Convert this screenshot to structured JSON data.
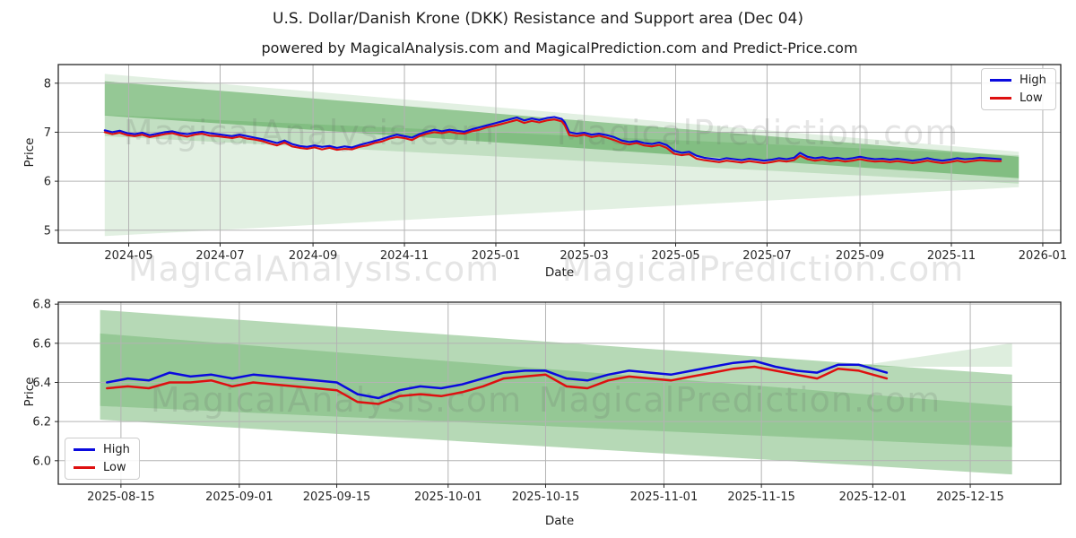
{
  "title": "U.S. Dollar/Danish Krone (DKK) Resistance and Support area (Dec 04)",
  "subtitle": "powered by MagicalAnalysis.com and MagicalPrediction.com and Predict-Price.com",
  "watermarks": {
    "analysis": "MagicalAnalysis.com",
    "prediction": "MagicalPrediction.com"
  },
  "colors": {
    "high": "#0a0ade",
    "low": "#de1010",
    "grid": "#b3b3b3",
    "frame": "#262626",
    "band_green": "34,139,34"
  },
  "chart_data": [
    {
      "type": "line",
      "xlabel": "Date",
      "ylabel": "Price",
      "legend_position": "top-right",
      "x_domain": [
        "2024-03-15",
        "2026-01-13"
      ],
      "y_domain": [
        4.74,
        8.38
      ],
      "x_ticks": [
        {
          "d": "2024-05-01",
          "label": "2024-05"
        },
        {
          "d": "2024-07-01",
          "label": "2024-07"
        },
        {
          "d": "2024-09-01",
          "label": "2024-09"
        },
        {
          "d": "2024-11-01",
          "label": "2024-11"
        },
        {
          "d": "2025-01-01",
          "label": "2025-01"
        },
        {
          "d": "2025-03-01",
          "label": "2025-03"
        },
        {
          "d": "2025-05-01",
          "label": "2025-05"
        },
        {
          "d": "2025-07-01",
          "label": "2025-07"
        },
        {
          "d": "2025-09-01",
          "label": "2025-09"
        },
        {
          "d": "2025-11-01",
          "label": "2025-11"
        },
        {
          "d": "2026-01-01",
          "label": "2026-01"
        }
      ],
      "y_ticks": [
        {
          "v": 5,
          "label": "5"
        },
        {
          "v": 6,
          "label": "6"
        },
        {
          "v": 7,
          "label": "7"
        },
        {
          "v": 8,
          "label": "8"
        }
      ],
      "bands": [
        {
          "name": "outer-channel-band",
          "fill": "rgba(34,139,34,0.13)",
          "points": [
            [
              "2024-04-15",
              8.19
            ],
            [
              "2025-12-16",
              6.6
            ],
            [
              "2025-12-16",
              5.88
            ],
            [
              "2024-04-15",
              4.88
            ]
          ]
        },
        {
          "name": "support-band",
          "fill": "rgba(34,139,34,0.16)",
          "points": [
            [
              "2024-04-15",
              7.35
            ],
            [
              "2025-12-16",
              6.53
            ],
            [
              "2025-12-16",
              5.95
            ],
            [
              "2024-04-15",
              6.92
            ]
          ]
        },
        {
          "name": "resistance-band",
          "fill": "rgba(34,139,34,0.40)",
          "points": [
            [
              "2024-04-15",
              8.04
            ],
            [
              "2025-12-16",
              6.5
            ],
            [
              "2025-12-16",
              6.06
            ],
            [
              "2024-04-15",
              7.34
            ]
          ]
        }
      ],
      "series": [
        {
          "name": "High",
          "color": "#0a0ade"
        },
        {
          "name": "Low",
          "color": "#de1010"
        }
      ],
      "rows": [
        [
          "2024-04-15",
          7.04,
          7.0
        ],
        [
          "2024-04-20",
          7.0,
          6.96
        ],
        [
          "2024-04-25",
          7.03,
          6.99
        ],
        [
          "2024-04-30",
          6.98,
          6.94
        ],
        [
          "2024-05-05",
          6.96,
          6.92
        ],
        [
          "2024-05-10",
          6.99,
          6.95
        ],
        [
          "2024-05-15",
          6.94,
          6.9
        ],
        [
          "2024-05-20",
          6.97,
          6.93
        ],
        [
          "2024-05-25",
          7.0,
          6.96
        ],
        [
          "2024-05-30",
          7.02,
          6.98
        ],
        [
          "2024-06-04",
          6.98,
          6.94
        ],
        [
          "2024-06-09",
          6.96,
          6.91
        ],
        [
          "2024-06-14",
          6.99,
          6.95
        ],
        [
          "2024-06-19",
          7.01,
          6.97
        ],
        [
          "2024-06-24",
          6.98,
          6.93
        ],
        [
          "2024-06-29",
          6.96,
          6.92
        ],
        [
          "2024-07-04",
          6.94,
          6.9
        ],
        [
          "2024-07-09",
          6.92,
          6.88
        ],
        [
          "2024-07-14",
          6.95,
          6.91
        ],
        [
          "2024-07-19",
          6.92,
          6.87
        ],
        [
          "2024-07-24",
          6.89,
          6.85
        ],
        [
          "2024-07-29",
          6.86,
          6.82
        ],
        [
          "2024-08-03",
          6.82,
          6.77
        ],
        [
          "2024-08-08",
          6.78,
          6.73
        ],
        [
          "2024-08-13",
          6.83,
          6.79
        ],
        [
          "2024-08-18",
          6.76,
          6.71
        ],
        [
          "2024-08-23",
          6.72,
          6.68
        ],
        [
          "2024-08-28",
          6.7,
          6.66
        ],
        [
          "2024-09-02",
          6.73,
          6.69
        ],
        [
          "2024-09-07",
          6.7,
          6.65
        ],
        [
          "2024-09-12",
          6.72,
          6.68
        ],
        [
          "2024-09-17",
          6.68,
          6.64
        ],
        [
          "2024-09-22",
          6.71,
          6.66
        ],
        [
          "2024-09-27",
          6.69,
          6.65
        ],
        [
          "2024-10-02",
          6.74,
          6.7
        ],
        [
          "2024-10-07",
          6.78,
          6.73
        ],
        [
          "2024-10-12",
          6.82,
          6.78
        ],
        [
          "2024-10-17",
          6.86,
          6.81
        ],
        [
          "2024-10-22",
          6.91,
          6.87
        ],
        [
          "2024-10-27",
          6.95,
          6.9
        ],
        [
          "2024-11-01",
          6.92,
          6.88
        ],
        [
          "2024-11-06",
          6.89,
          6.84
        ],
        [
          "2024-11-11",
          6.96,
          6.92
        ],
        [
          "2024-11-16",
          7.01,
          6.97
        ],
        [
          "2024-11-21",
          7.05,
          7.0
        ],
        [
          "2024-11-26",
          7.02,
          6.98
        ],
        [
          "2024-12-01",
          7.05,
          7.01
        ],
        [
          "2024-12-06",
          7.03,
          6.98
        ],
        [
          "2024-12-11",
          7.01,
          6.97
        ],
        [
          "2024-12-16",
          7.06,
          7.02
        ],
        [
          "2024-12-21",
          7.1,
          7.05
        ],
        [
          "2024-12-26",
          7.14,
          7.1
        ],
        [
          "2024-12-31",
          7.18,
          7.13
        ],
        [
          "2025-01-05",
          7.22,
          7.17
        ],
        [
          "2025-01-10",
          7.26,
          7.21
        ],
        [
          "2025-01-15",
          7.3,
          7.25
        ],
        [
          "2025-01-20",
          7.24,
          7.19
        ],
        [
          "2025-01-25",
          7.28,
          7.23
        ],
        [
          "2025-01-30",
          7.25,
          7.2
        ],
        [
          "2025-02-04",
          7.29,
          7.24
        ],
        [
          "2025-02-09",
          7.31,
          7.26
        ],
        [
          "2025-02-14",
          7.27,
          7.22
        ],
        [
          "2025-02-16",
          7.2,
          7.14
        ],
        [
          "2025-02-19",
          7.0,
          6.94
        ],
        [
          "2025-02-24",
          6.97,
          6.92
        ],
        [
          "2025-03-01",
          6.99,
          6.95
        ],
        [
          "2025-03-06",
          6.95,
          6.9
        ],
        [
          "2025-03-11",
          6.97,
          6.93
        ],
        [
          "2025-03-16",
          6.94,
          6.89
        ],
        [
          "2025-03-21",
          6.9,
          6.84
        ],
        [
          "2025-03-26",
          6.83,
          6.78
        ],
        [
          "2025-03-31",
          6.8,
          6.75
        ],
        [
          "2025-04-05",
          6.82,
          6.78
        ],
        [
          "2025-04-10",
          6.78,
          6.73
        ],
        [
          "2025-04-15",
          6.76,
          6.71
        ],
        [
          "2025-04-20",
          6.79,
          6.74
        ],
        [
          "2025-04-25",
          6.74,
          6.68
        ],
        [
          "2025-04-30",
          6.62,
          6.56
        ],
        [
          "2025-05-05",
          6.58,
          6.53
        ],
        [
          "2025-05-10",
          6.6,
          6.55
        ],
        [
          "2025-05-15",
          6.52,
          6.46
        ],
        [
          "2025-05-20",
          6.48,
          6.43
        ],
        [
          "2025-05-25",
          6.46,
          6.41
        ],
        [
          "2025-05-30",
          6.44,
          6.39
        ],
        [
          "2025-06-04",
          6.47,
          6.42
        ],
        [
          "2025-06-09",
          6.45,
          6.4
        ],
        [
          "2025-06-14",
          6.43,
          6.38
        ],
        [
          "2025-06-19",
          6.46,
          6.41
        ],
        [
          "2025-06-24",
          6.44,
          6.39
        ],
        [
          "2025-06-29",
          6.42,
          6.37
        ],
        [
          "2025-07-04",
          6.44,
          6.39
        ],
        [
          "2025-07-09",
          6.47,
          6.42
        ],
        [
          "2025-07-14",
          6.45,
          6.4
        ],
        [
          "2025-07-19",
          6.48,
          6.43
        ],
        [
          "2025-07-23",
          6.58,
          6.52
        ],
        [
          "2025-07-28",
          6.5,
          6.45
        ],
        [
          "2025-08-02",
          6.47,
          6.42
        ],
        [
          "2025-08-07",
          6.49,
          6.44
        ],
        [
          "2025-08-12",
          6.46,
          6.41
        ],
        [
          "2025-08-17",
          6.48,
          6.43
        ],
        [
          "2025-08-22",
          6.45,
          6.4
        ],
        [
          "2025-08-27",
          6.47,
          6.42
        ],
        [
          "2025-09-01",
          6.5,
          6.45
        ],
        [
          "2025-09-06",
          6.47,
          6.42
        ],
        [
          "2025-09-11",
          6.45,
          6.4
        ],
        [
          "2025-09-16",
          6.46,
          6.41
        ],
        [
          "2025-09-21",
          6.44,
          6.39
        ],
        [
          "2025-09-26",
          6.46,
          6.41
        ],
        [
          "2025-10-01",
          6.44,
          6.39
        ],
        [
          "2025-10-06",
          6.42,
          6.37
        ],
        [
          "2025-10-11",
          6.44,
          6.39
        ],
        [
          "2025-10-16",
          6.47,
          6.42
        ],
        [
          "2025-10-21",
          6.44,
          6.39
        ],
        [
          "2025-10-26",
          6.42,
          6.37
        ],
        [
          "2025-10-31",
          6.44,
          6.39
        ],
        [
          "2025-11-05",
          6.47,
          6.42
        ],
        [
          "2025-11-10",
          6.45,
          6.39
        ],
        [
          "2025-11-15",
          6.46,
          6.41
        ],
        [
          "2025-11-20",
          6.48,
          6.43
        ],
        [
          "2025-11-25",
          6.47,
          6.42
        ],
        [
          "2025-11-30",
          6.46,
          6.41
        ],
        [
          "2025-12-04",
          6.45,
          6.41
        ]
      ]
    },
    {
      "type": "line",
      "xlabel": "Date",
      "ylabel": "Price",
      "legend_position": "bottom-left",
      "x_domain": [
        "2025-08-06",
        "2025-12-28"
      ],
      "y_domain": [
        5.88,
        6.81
      ],
      "x_ticks": [
        {
          "d": "2025-08-15",
          "label": "2025-08-15"
        },
        {
          "d": "2025-09-01",
          "label": "2025-09-01"
        },
        {
          "d": "2025-09-15",
          "label": "2025-09-15"
        },
        {
          "d": "2025-10-01",
          "label": "2025-10-01"
        },
        {
          "d": "2025-10-15",
          "label": "2025-10-15"
        },
        {
          "d": "2025-11-01",
          "label": "2025-11-01"
        },
        {
          "d": "2025-11-15",
          "label": "2025-11-15"
        },
        {
          "d": "2025-12-01",
          "label": "2025-12-01"
        },
        {
          "d": "2025-12-15",
          "label": "2025-12-15"
        }
      ],
      "y_ticks": [
        {
          "v": 6.0,
          "label": "6.0"
        },
        {
          "v": 6.2,
          "label": "6.2"
        },
        {
          "v": 6.4,
          "label": "6.4"
        },
        {
          "v": 6.6,
          "label": "6.6"
        },
        {
          "v": 6.8,
          "label": "6.8"
        }
      ],
      "bands": [
        {
          "name": "outer-channel-band",
          "fill": "rgba(34,139,34,0.33)",
          "points": [
            [
              "2025-08-12",
              6.77
            ],
            [
              "2025-12-21",
              6.44
            ],
            [
              "2025-12-21",
              5.93
            ],
            [
              "2025-08-12",
              6.21
            ]
          ]
        },
        {
          "name": "inner-channel-band",
          "fill": "rgba(34,139,34,0.22)",
          "points": [
            [
              "2025-08-12",
              6.65
            ],
            [
              "2025-12-21",
              6.28
            ],
            [
              "2025-12-21",
              6.07
            ],
            [
              "2025-08-12",
              6.28
            ]
          ]
        },
        {
          "name": "upper-flare-band",
          "fill": "rgba(34,139,34,0.15)",
          "points": [
            [
              "2025-11-28",
              6.48
            ],
            [
              "2025-12-21",
              6.6
            ],
            [
              "2025-12-21",
              6.48
            ]
          ]
        }
      ],
      "series": [
        {
          "name": "High",
          "color": "#0a0ade"
        },
        {
          "name": "Low",
          "color": "#de1010"
        }
      ],
      "rows": [
        [
          "2025-08-13",
          6.4,
          6.37
        ],
        [
          "2025-08-16",
          6.42,
          6.38
        ],
        [
          "2025-08-19",
          6.41,
          6.37
        ],
        [
          "2025-08-22",
          6.45,
          6.4
        ],
        [
          "2025-08-25",
          6.43,
          6.4
        ],
        [
          "2025-08-28",
          6.44,
          6.41
        ],
        [
          "2025-08-31",
          6.42,
          6.38
        ],
        [
          "2025-09-03",
          6.44,
          6.4
        ],
        [
          "2025-09-06",
          6.43,
          6.39
        ],
        [
          "2025-09-09",
          6.42,
          6.38
        ],
        [
          "2025-09-12",
          6.41,
          6.37
        ],
        [
          "2025-09-15",
          6.4,
          6.36
        ],
        [
          "2025-09-18",
          6.34,
          6.3
        ],
        [
          "2025-09-21",
          6.32,
          6.29
        ],
        [
          "2025-09-24",
          6.36,
          6.33
        ],
        [
          "2025-09-27",
          6.38,
          6.34
        ],
        [
          "2025-09-30",
          6.37,
          6.33
        ],
        [
          "2025-10-03",
          6.39,
          6.35
        ],
        [
          "2025-10-06",
          6.42,
          6.38
        ],
        [
          "2025-10-09",
          6.45,
          6.42
        ],
        [
          "2025-10-12",
          6.46,
          6.43
        ],
        [
          "2025-10-15",
          6.46,
          6.44
        ],
        [
          "2025-10-18",
          6.42,
          6.38
        ],
        [
          "2025-10-21",
          6.41,
          6.37
        ],
        [
          "2025-10-24",
          6.44,
          6.41
        ],
        [
          "2025-10-27",
          6.46,
          6.43
        ],
        [
          "2025-10-30",
          6.45,
          6.42
        ],
        [
          "2025-11-02",
          6.44,
          6.41
        ],
        [
          "2025-11-05",
          6.46,
          6.43
        ],
        [
          "2025-11-08",
          6.48,
          6.45
        ],
        [
          "2025-11-11",
          6.5,
          6.47
        ],
        [
          "2025-11-14",
          6.51,
          6.48
        ],
        [
          "2025-11-17",
          6.48,
          6.46
        ],
        [
          "2025-11-20",
          6.46,
          6.44
        ],
        [
          "2025-11-23",
          6.45,
          6.42
        ],
        [
          "2025-11-26",
          6.49,
          6.47
        ],
        [
          "2025-11-29",
          6.49,
          6.46
        ],
        [
          "2025-12-01",
          6.47,
          6.44
        ],
        [
          "2025-12-03",
          6.45,
          6.42
        ]
      ]
    }
  ]
}
